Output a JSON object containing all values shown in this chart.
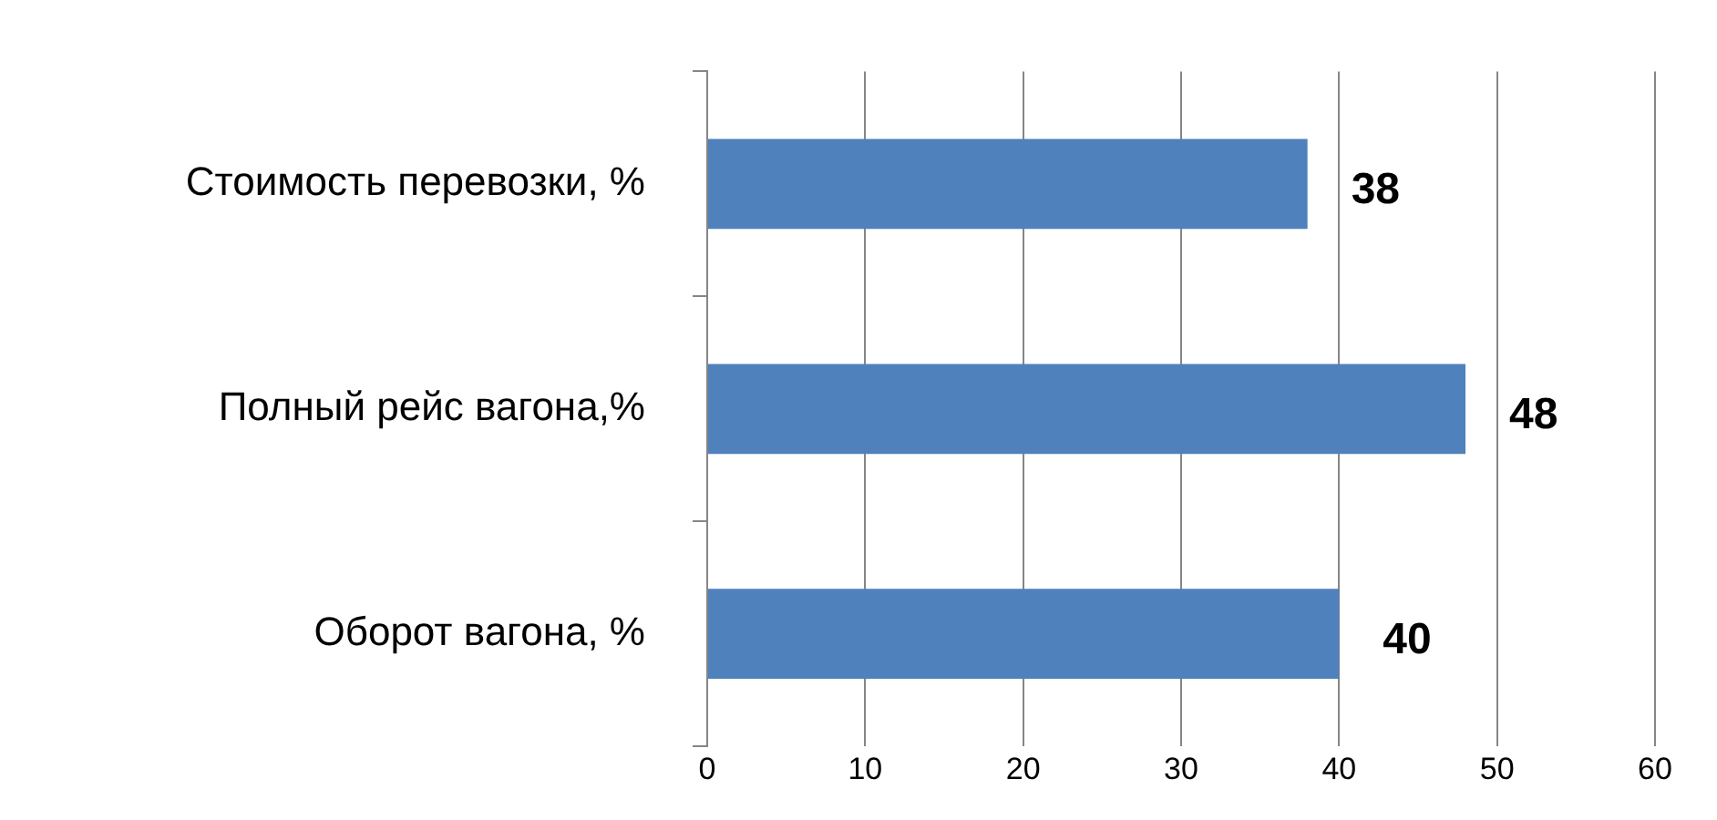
{
  "chart_data": {
    "type": "bar",
    "orientation": "horizontal",
    "categories": [
      "Стоимость перевозки, %",
      "Полный рейс вагона,%",
      "Оборот вагона, %"
    ],
    "values": [
      38,
      48,
      40
    ],
    "color": "#4f81bd",
    "xlim": [
      0,
      60
    ],
    "xticks": [
      0,
      10,
      20,
      30,
      40,
      50,
      60
    ],
    "grid": "x",
    "legend": false,
    "data_labels": true
  }
}
